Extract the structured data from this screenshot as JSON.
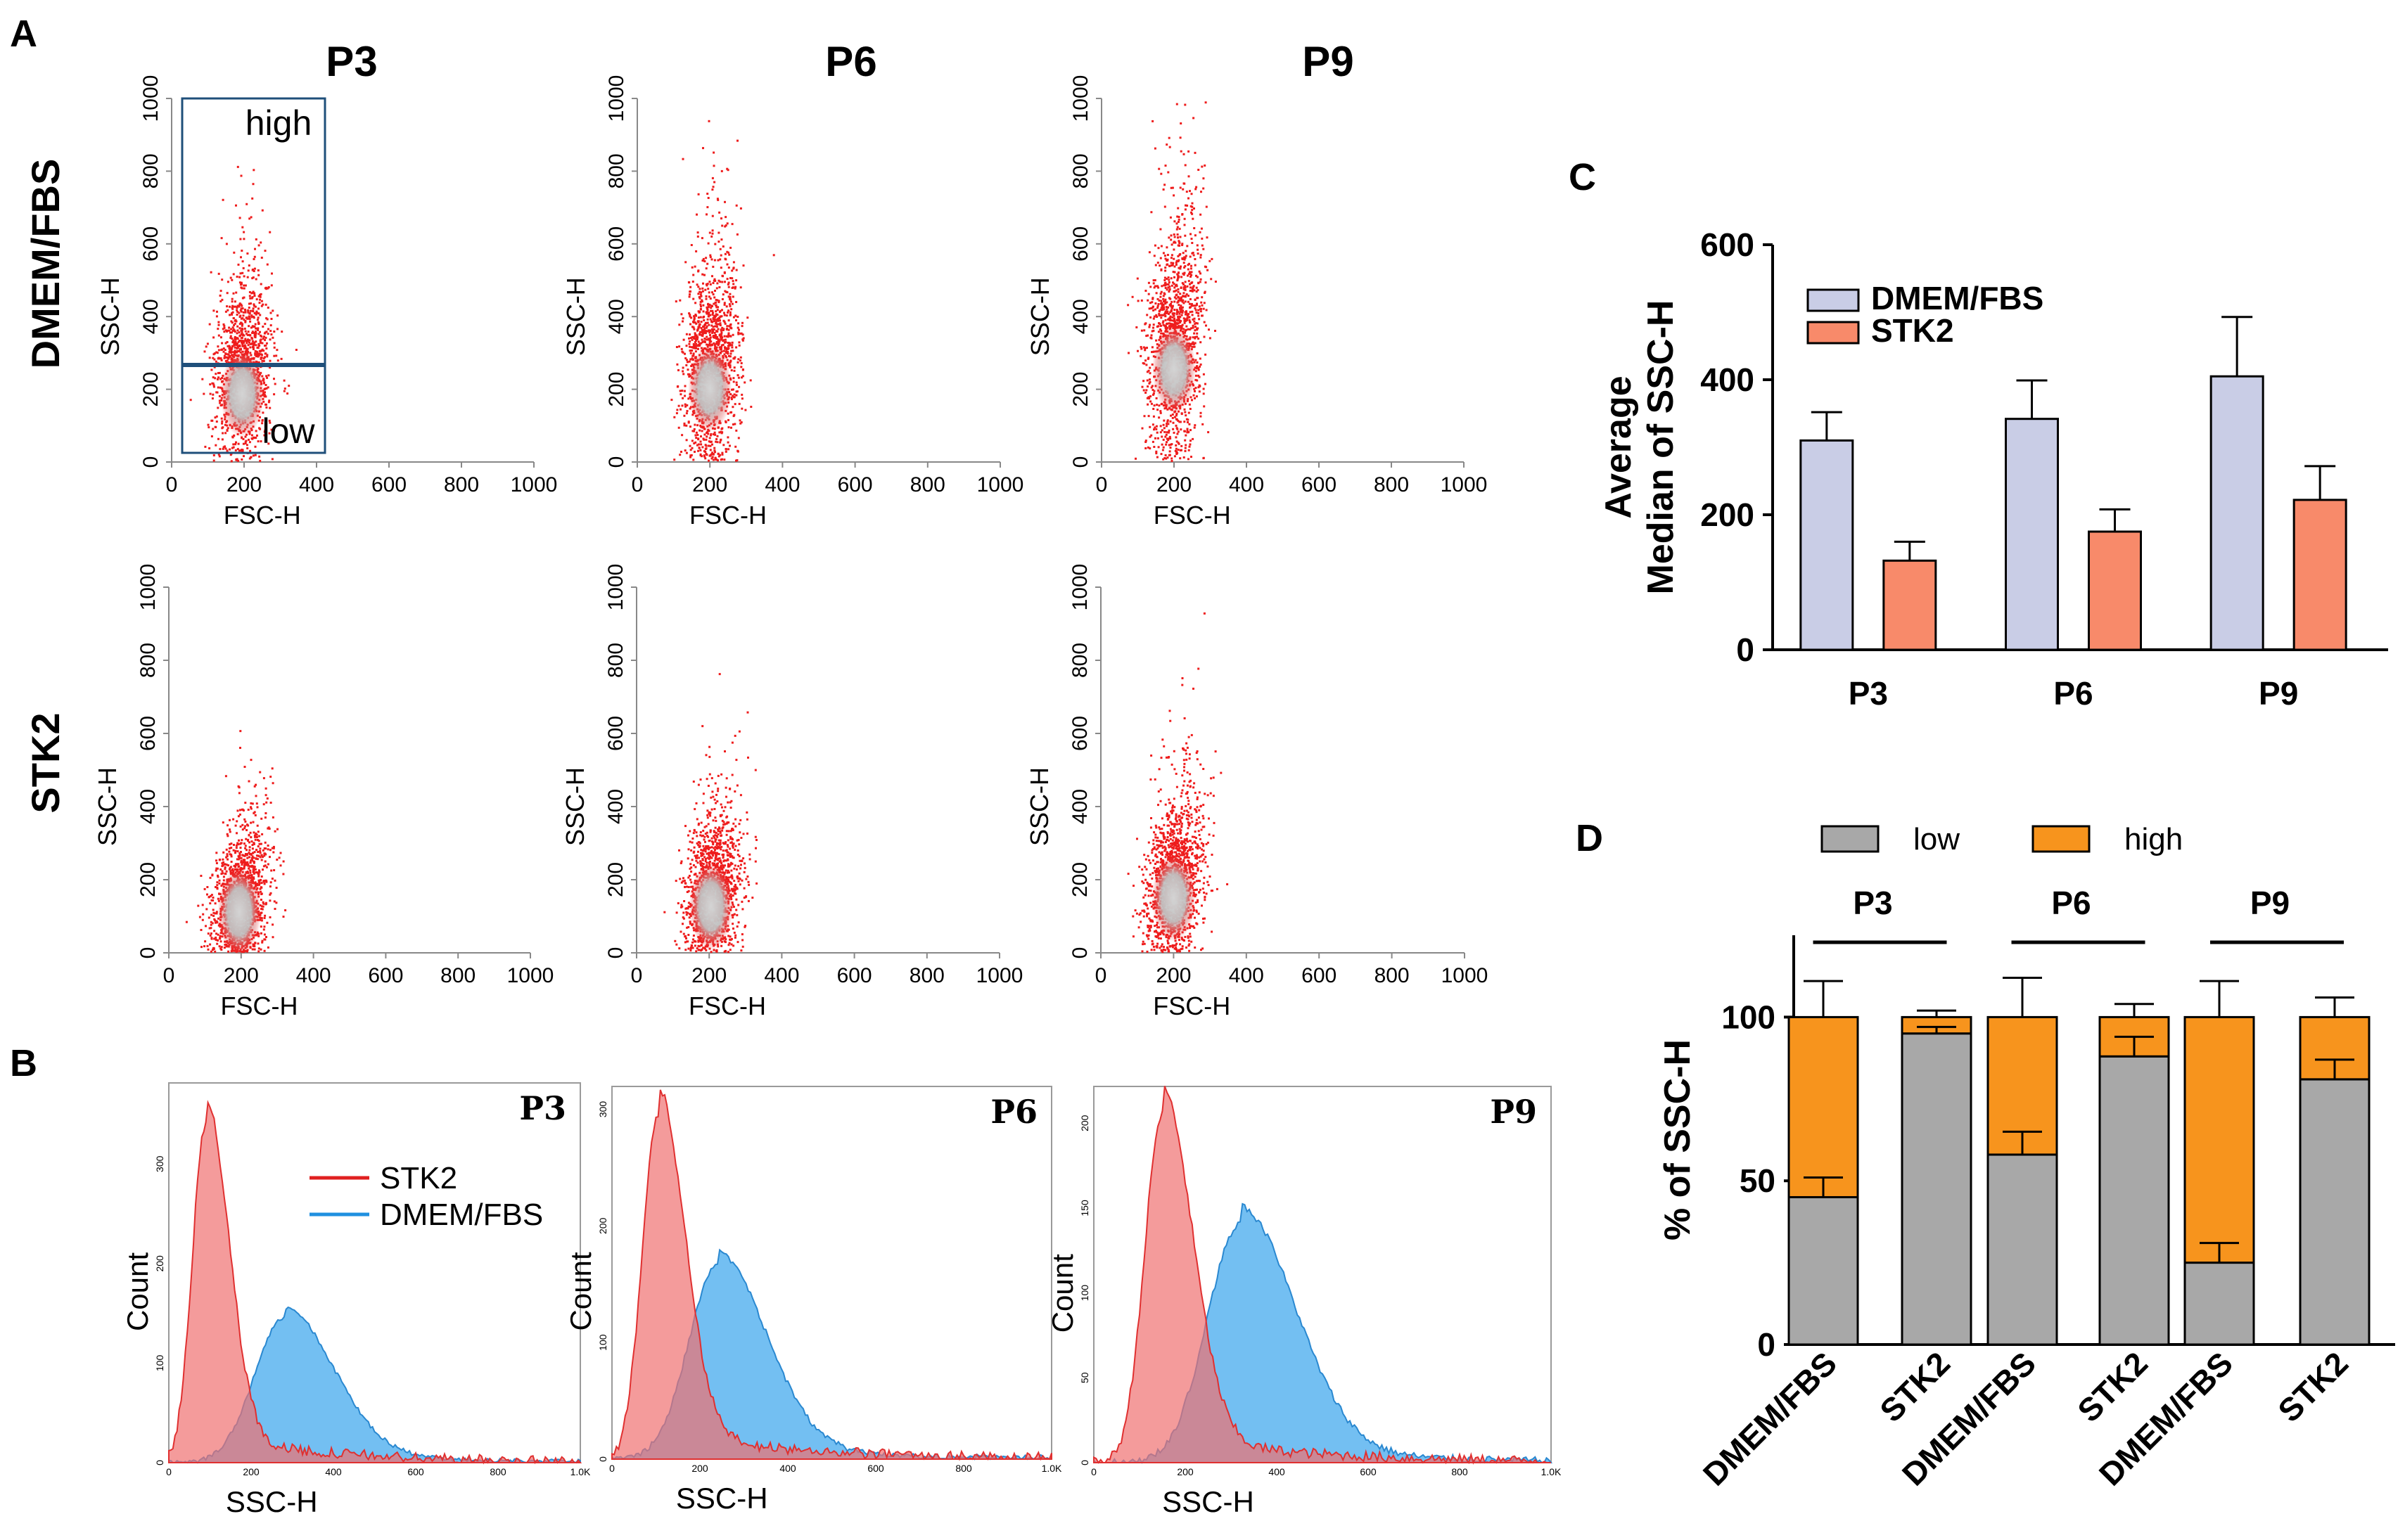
{
  "panel_labels": {
    "a": "A",
    "b": "B",
    "c": "C",
    "d": "D"
  },
  "colors": {
    "scatter": "#ee1c1c",
    "scatter_core": "#c8c8c8",
    "stk2_hist": "#f07070",
    "dmem_hist": "#5ab4f0",
    "overlap_hist": "#9a6aa8",
    "dmem_bar": "#c9cde6",
    "stk2_bar": "#f88a6a",
    "low_bar": "#a8a8a8",
    "high_bar": "#f7941d",
    "gate": "#1f4f7a"
  },
  "panel_a": {
    "columns": [
      "P3",
      "P6",
      "P9"
    ],
    "rows": [
      "DMEM/FBS",
      "STK2"
    ],
    "xlabel": "FSC-H",
    "ylabel": "SSC-H",
    "ticks": [
      "0",
      "200",
      "400",
      "600",
      "800",
      "1000"
    ],
    "gate_high": "high",
    "gate_low": "low"
  },
  "panel_b": {
    "panels": [
      "P3",
      "P6",
      "P9"
    ],
    "xlabel": "SSC-H",
    "ylabel": "Count",
    "xticks": [
      "0",
      "200",
      "400",
      "600",
      "800",
      "1.0K"
    ],
    "yticks": [
      [
        "0",
        "100",
        "200",
        "300"
      ],
      [
        "0",
        "100",
        "200",
        "300"
      ],
      [
        "0",
        "50",
        "100",
        "150",
        "200"
      ]
    ],
    "legend": [
      "STK2",
      "DMEM/FBS"
    ]
  },
  "chart_data": [
    {
      "type": "bar",
      "id": "C",
      "categories": [
        "P3",
        "P6",
        "P9"
      ],
      "series": [
        {
          "name": "DMEM/FBS",
          "values": [
            310,
            342,
            405
          ],
          "errors": [
            42,
            57,
            88
          ]
        },
        {
          "name": "STK2",
          "values": [
            132,
            175,
            222
          ],
          "errors": [
            28,
            33,
            50
          ]
        }
      ],
      "title": "",
      "xlabel": "",
      "ylabel": "Average Median of SSC-H",
      "ylabel_lines": [
        "Average",
        "Median of SSC-H"
      ],
      "ylim": [
        0,
        600
      ],
      "yticks": [
        "0",
        "200",
        "400",
        "600"
      ]
    },
    {
      "type": "bar",
      "stacked": true,
      "id": "D",
      "groups": [
        "P3",
        "P6",
        "P9"
      ],
      "categories": [
        "DMEM/FBS",
        "STK2",
        "DMEM/FBS",
        "STK2",
        "DMEM/FBS",
        "STK2"
      ],
      "series": [
        {
          "name": "low",
          "values": [
            45,
            95,
            58,
            88,
            25,
            81
          ],
          "errors": [
            6,
            2,
            7,
            6,
            6,
            6
          ]
        },
        {
          "name": "high",
          "values": [
            55,
            5,
            42,
            12,
            75,
            19
          ],
          "errors": [
            11,
            2,
            12,
            4,
            11,
            6
          ]
        }
      ],
      "ylabel": "% of SSC-H",
      "ylim": [
        0,
        125
      ],
      "yticks": [
        "0",
        "50",
        "100"
      ]
    }
  ]
}
